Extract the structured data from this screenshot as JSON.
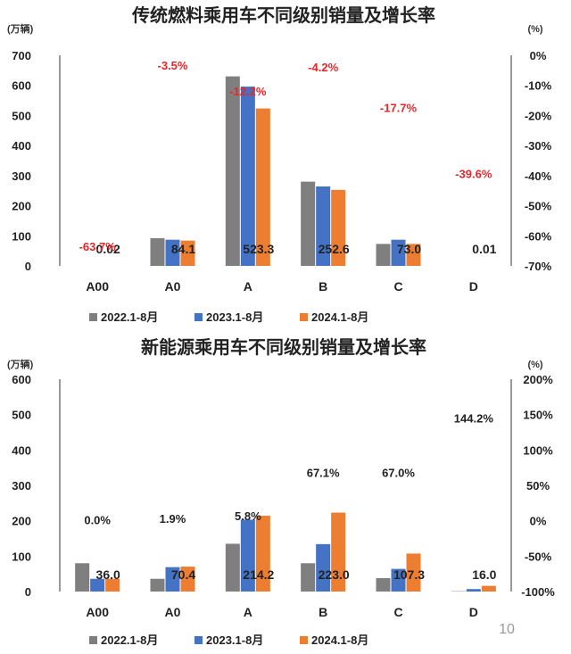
{
  "page_number": "10",
  "colors": {
    "2022": "#7f7f7f",
    "2023": "#4472c4",
    "2024": "#ed7d31",
    "growth_negative": "#e8262a",
    "growth_positive": "#222222"
  },
  "chart_data": [
    {
      "type": "bar",
      "title": "传统燃料乘用车不同级别销量及增长率",
      "ylabel": "(万辆)",
      "y2label": "(%)",
      "ylim": [
        0,
        700
      ],
      "yticks": [
        "0",
        "100",
        "200",
        "300",
        "400",
        "500",
        "600",
        "700"
      ],
      "y2lim": [
        -70,
        0
      ],
      "y2ticks": [
        "0%",
        "-10%",
        "-20%",
        "-30%",
        "-40%",
        "-50%",
        "-60%",
        "-70%"
      ],
      "categories": [
        "A00",
        "A0",
        "A",
        "B",
        "C",
        "D"
      ],
      "series": [
        {
          "name": "2022.1-8月",
          "values": [
            0.03,
            92,
            630,
            280,
            73,
            0.02
          ]
        },
        {
          "name": "2023.1-8月",
          "values": [
            0.05,
            87,
            596,
            264,
            87,
            0.02
          ]
        },
        {
          "name": "2024.1-8月",
          "values": [
            0.02,
            84.1,
            523.3,
            252.6,
            73.0,
            0.01
          ]
        }
      ],
      "value_labels": [
        "0.02",
        "84.1",
        "523.3",
        "252.6",
        "73.0",
        "0.01"
      ],
      "growth_labels": [
        "-63.7%",
        "-3.5%",
        "-12.2%",
        "-4.2%",
        "-17.7%",
        "-39.6%"
      ],
      "growth_values": [
        -63.7,
        -3.5,
        -12.2,
        -4.2,
        -17.7,
        -39.6
      ],
      "legend": "bottom"
    },
    {
      "type": "bar",
      "title": "新能源乘用车不同级别销量及增长率",
      "ylabel": "(万辆)",
      "y2label": "(%)",
      "ylim": [
        0,
        600
      ],
      "yticks": [
        "0",
        "100",
        "200",
        "300",
        "400",
        "500",
        "600"
      ],
      "y2lim": [
        -100,
        200
      ],
      "y2ticks": [
        "200%",
        "150%",
        "100%",
        "50%",
        "0%",
        "-50%",
        "-100%"
      ],
      "categories": [
        "A00",
        "A0",
        "A",
        "B",
        "C",
        "D"
      ],
      "series": [
        {
          "name": "2022.1-8月",
          "values": [
            80,
            36,
            135,
            80,
            38,
            1
          ]
        },
        {
          "name": "2023.1-8月",
          "values": [
            36,
            69,
            203,
            134,
            64,
            7
          ]
        },
        {
          "name": "2024.1-8月",
          "values": [
            36.0,
            70.4,
            214.2,
            223.0,
            107.3,
            16.0
          ]
        }
      ],
      "value_labels": [
        "36.0",
        "70.4",
        "214.2",
        "223.0",
        "107.3",
        "16.0"
      ],
      "growth_labels": [
        "0.0%",
        "1.9%",
        "5.8%",
        "67.1%",
        "67.0%",
        "144.2%"
      ],
      "growth_values": [
        0.0,
        1.9,
        5.8,
        67.1,
        67.0,
        144.2
      ],
      "legend": "bottom"
    }
  ]
}
